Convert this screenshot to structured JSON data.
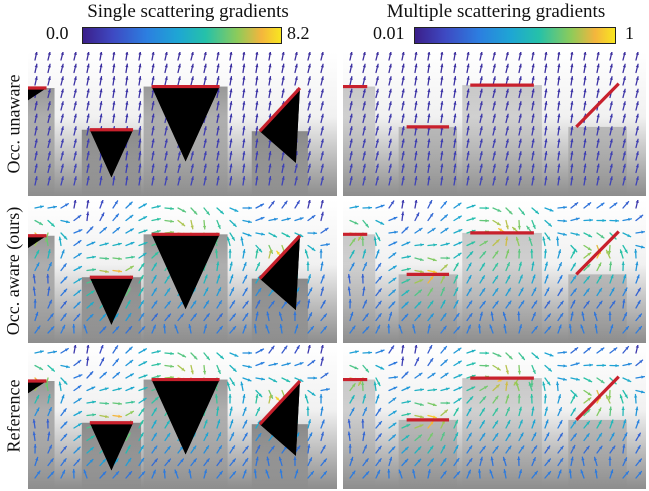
{
  "columns": [
    {
      "title": "Single scattering gradients",
      "cb_min": "0.0",
      "cb_max": "8.2"
    },
    {
      "title": "Multiple scattering gradients",
      "cb_min": "0.01",
      "cb_max": "1"
    }
  ],
  "rows": [
    {
      "label": "Occ. unaware"
    },
    {
      "label": "Occ. aware (ours)"
    },
    {
      "label": "Reference"
    }
  ],
  "colors": {
    "occluder": "#c8202c",
    "arrow_low": "#3b2a8f",
    "arrow_high": "#f8e620",
    "shadow": "#000000",
    "background_top": "#ffffff",
    "background_bottom": "#8d8d8d"
  }
}
